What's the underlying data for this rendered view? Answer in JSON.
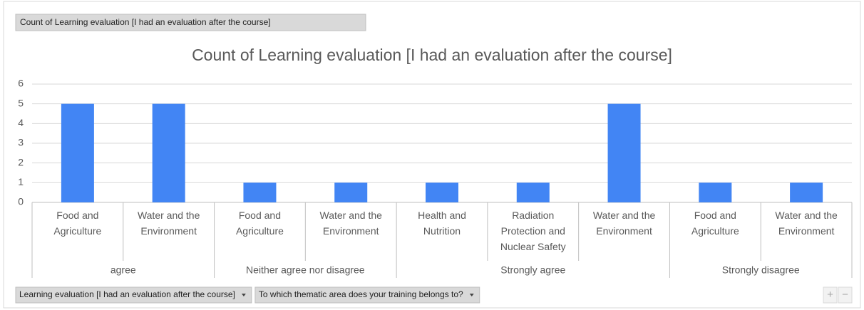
{
  "chart_data": {
    "type": "bar",
    "value_field": "Count of Learning evaluation [I had an evaluation after the course]",
    "title": "Count of Learning evaluation [I had an evaluation after the course]",
    "color": "#4285f4",
    "grid": true,
    "ylim": [
      0,
      6
    ],
    "yticks": [
      0,
      1,
      2,
      3,
      4,
      5,
      6
    ],
    "groups": [
      {
        "name": "agree",
        "categories": [
          "Food and Agriculture",
          "Water and the Environment"
        ],
        "values": [
          5,
          5
        ]
      },
      {
        "name": "Neither agree nor disagree",
        "categories": [
          "Food and Agriculture",
          "Water and the Environment"
        ],
        "values": [
          1,
          1
        ]
      },
      {
        "name": "Strongly agree",
        "categories": [
          "Health and Nutrition",
          "Radiation Protection and Nuclear Safety",
          "Water and the Environment"
        ],
        "values": [
          1,
          1,
          5
        ]
      },
      {
        "name": "Strongly disagree",
        "categories": [
          "Food and Agriculture",
          "Water and the Environment"
        ],
        "values": [
          1,
          1
        ]
      }
    ],
    "field_buttons": [
      "Learning evaluation [I had an evaluation after the course]",
      "To which thematic area does your training belongs to?"
    ],
    "zoom_buttons": [
      "+",
      "−"
    ]
  }
}
